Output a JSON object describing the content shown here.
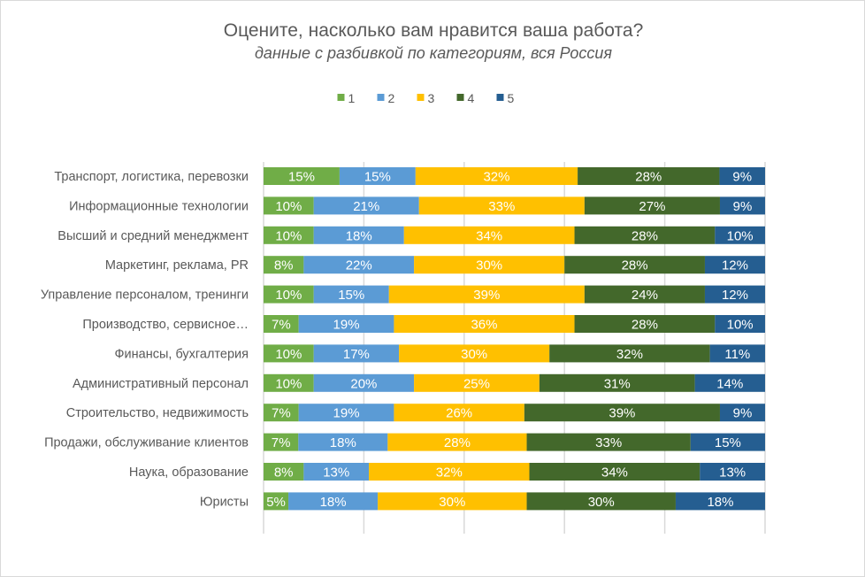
{
  "chart_data": {
    "type": "bar",
    "orientation": "horizontal",
    "stacked": true,
    "title": "Оцените, насколько вам нравится ваша работа?",
    "subtitle": "данные с разбивкой по категориям, вся Россия",
    "legend_position": "top",
    "grid": true,
    "xlim": [
      0,
      100
    ],
    "categories": [
      "Транспорт, логистика, перевозки",
      "Информационные технологии",
      "Высший и средний менеджмент",
      "Маркетинг, реклама, PR",
      "Управление персоналом, тренинги",
      "Производство, сервисное…",
      "Финансы, бухгалтерия",
      "Административный персонал",
      "Строительство, недвижимость",
      "Продажи, обслуживание клиентов",
      "Наука, образование",
      "Юристы"
    ],
    "series": [
      {
        "name": "1",
        "color": "#70ad47",
        "values": [
          15,
          10,
          10,
          8,
          10,
          7,
          10,
          10,
          7,
          7,
          8,
          5
        ]
      },
      {
        "name": "2",
        "color": "#5b9bd5",
        "values": [
          15,
          21,
          18,
          22,
          15,
          19,
          17,
          20,
          19,
          18,
          13,
          18
        ]
      },
      {
        "name": "3",
        "color": "#ffc000",
        "values": [
          32,
          33,
          34,
          30,
          39,
          36,
          30,
          25,
          26,
          28,
          32,
          30
        ]
      },
      {
        "name": "4",
        "color": "#43682b",
        "values": [
          28,
          27,
          28,
          28,
          24,
          28,
          32,
          31,
          39,
          33,
          34,
          30
        ]
      },
      {
        "name": "5",
        "color": "#255e91",
        "values": [
          9,
          9,
          10,
          12,
          12,
          10,
          11,
          14,
          9,
          15,
          13,
          18
        ]
      }
    ],
    "value_suffix": "%"
  }
}
